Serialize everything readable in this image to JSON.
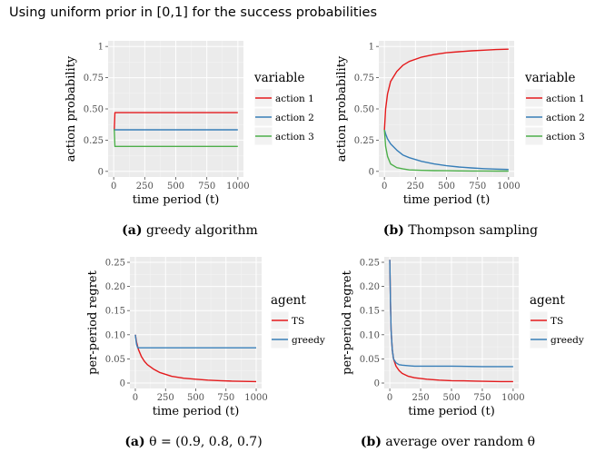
{
  "title": "Using uniform prior in [0,1] for the success probabilities",
  "chart_data": [
    {
      "type": "line",
      "caption_tag": "(a)",
      "caption_text": "greedy algorithm",
      "xlabel": "time period (t)",
      "ylabel": "action probability",
      "xlim": [
        0,
        1000
      ],
      "ylim": [
        0,
        1
      ],
      "xticks": [
        0,
        250,
        500,
        750,
        1000
      ],
      "yticks": [
        0,
        0.25,
        0.5,
        0.75,
        1
      ],
      "ytick_labels": [
        "0",
        "0.25",
        "0.50",
        "0.75",
        "1"
      ],
      "legend_title": "variable",
      "legend_position": "right",
      "grid": true,
      "series": [
        {
          "name": "action 1",
          "color": "#e41a1c",
          "x": [
            0,
            5,
            10,
            30,
            1000
          ],
          "y": [
            0.333,
            0.333,
            0.47,
            0.47,
            0.47
          ]
        },
        {
          "name": "action 2",
          "color": "#377eb8",
          "x": [
            0,
            10,
            30,
            1000
          ],
          "y": [
            0.333,
            0.333,
            0.333,
            0.333
          ]
        },
        {
          "name": "action 3",
          "color": "#4daf4a",
          "x": [
            0,
            5,
            10,
            30,
            1000
          ],
          "y": [
            0.333,
            0.333,
            0.2,
            0.2,
            0.2
          ]
        }
      ]
    },
    {
      "type": "line",
      "caption_tag": "(b)",
      "caption_text": "Thompson sampling",
      "xlabel": "time period (t)",
      "ylabel": "action probability",
      "xlim": [
        0,
        1000
      ],
      "ylim": [
        0,
        1
      ],
      "xticks": [
        0,
        250,
        500,
        750,
        1000
      ],
      "yticks": [
        0,
        0.25,
        0.5,
        0.75,
        1
      ],
      "ytick_labels": [
        "0",
        "0.25",
        "0.50",
        "0.75",
        "1"
      ],
      "legend_title": "variable",
      "legend_position": "right",
      "grid": true,
      "series": [
        {
          "name": "action 1",
          "color": "#e41a1c",
          "x": [
            0,
            10,
            25,
            50,
            100,
            150,
            200,
            300,
            400,
            500,
            600,
            700,
            800,
            900,
            1000
          ],
          "y": [
            0.333,
            0.5,
            0.62,
            0.72,
            0.8,
            0.85,
            0.88,
            0.915,
            0.935,
            0.95,
            0.958,
            0.965,
            0.97,
            0.975,
            0.978
          ]
        },
        {
          "name": "action 2",
          "color": "#377eb8",
          "x": [
            0,
            10,
            25,
            50,
            100,
            150,
            200,
            300,
            400,
            500,
            600,
            700,
            800,
            900,
            1000
          ],
          "y": [
            0.333,
            0.3,
            0.26,
            0.22,
            0.17,
            0.13,
            0.11,
            0.08,
            0.06,
            0.045,
            0.035,
            0.028,
            0.022,
            0.018,
            0.015
          ]
        },
        {
          "name": "action 3",
          "color": "#4daf4a",
          "x": [
            0,
            10,
            25,
            50,
            100,
            150,
            200,
            300,
            400,
            500,
            600,
            700,
            800,
            900,
            1000
          ],
          "y": [
            0.333,
            0.2,
            0.12,
            0.06,
            0.03,
            0.02,
            0.012,
            0.008,
            0.006,
            0.005,
            0.004,
            0.003,
            0.003,
            0.002,
            0.002
          ]
        }
      ]
    },
    {
      "type": "line",
      "caption_tag": "(a)",
      "caption_text": "θ = (0.9, 0.8, 0.7)",
      "xlabel": "time period (t)",
      "ylabel": "per-period regret",
      "xlim": [
        0,
        1000
      ],
      "ylim": [
        0,
        0.25
      ],
      "xticks": [
        0,
        250,
        500,
        750,
        1000
      ],
      "yticks": [
        0,
        0.05,
        0.1,
        0.15,
        0.2,
        0.25
      ],
      "ytick_labels": [
        "0",
        "0.05",
        "0.10",
        "0.15",
        "0.20",
        "0.25"
      ],
      "legend_title": "agent",
      "legend_position": "right",
      "grid": true,
      "series": [
        {
          "name": "TS",
          "color": "#e41a1c",
          "x": [
            0,
            10,
            25,
            50,
            75,
            100,
            150,
            200,
            300,
            400,
            500,
            600,
            700,
            800,
            900,
            1000
          ],
          "y": [
            0.1,
            0.085,
            0.07,
            0.055,
            0.045,
            0.038,
            0.029,
            0.022,
            0.014,
            0.01,
            0.008,
            0.006,
            0.005,
            0.004,
            0.0035,
            0.003
          ]
        },
        {
          "name": "greedy",
          "color": "#377eb8",
          "x": [
            0,
            10,
            20,
            1000
          ],
          "y": [
            0.1,
            0.08,
            0.073,
            0.073
          ]
        }
      ]
    },
    {
      "type": "line",
      "caption_tag": "(b)",
      "caption_text": "average over random θ",
      "xlabel": "time period (t)",
      "ylabel": "per-period regret",
      "xlim": [
        0,
        1000
      ],
      "ylim": [
        0,
        0.25
      ],
      "xticks": [
        0,
        250,
        500,
        750,
        1000
      ],
      "yticks": [
        0,
        0.05,
        0.1,
        0.15,
        0.2,
        0.25
      ],
      "ytick_labels": [
        "0",
        "0.05",
        "0.10",
        "0.15",
        "0.20",
        "0.25"
      ],
      "legend_title": "agent",
      "legend_position": "right",
      "grid": true,
      "series": [
        {
          "name": "TS",
          "color": "#e41a1c",
          "x": [
            0,
            5,
            10,
            20,
            30,
            50,
            75,
            100,
            150,
            200,
            300,
            400,
            500,
            600,
            700,
            800,
            900,
            1000
          ],
          "y": [
            0.255,
            0.17,
            0.11,
            0.07,
            0.05,
            0.035,
            0.026,
            0.02,
            0.014,
            0.011,
            0.008,
            0.006,
            0.005,
            0.0045,
            0.004,
            0.0035,
            0.003,
            0.003
          ]
        },
        {
          "name": "greedy",
          "color": "#377eb8",
          "x": [
            0,
            5,
            10,
            20,
            30,
            50,
            75,
            100,
            150,
            200,
            300,
            500,
            750,
            1000
          ],
          "y": [
            0.255,
            0.17,
            0.11,
            0.07,
            0.05,
            0.042,
            0.038,
            0.037,
            0.036,
            0.035,
            0.035,
            0.035,
            0.034,
            0.034
          ]
        }
      ]
    }
  ]
}
